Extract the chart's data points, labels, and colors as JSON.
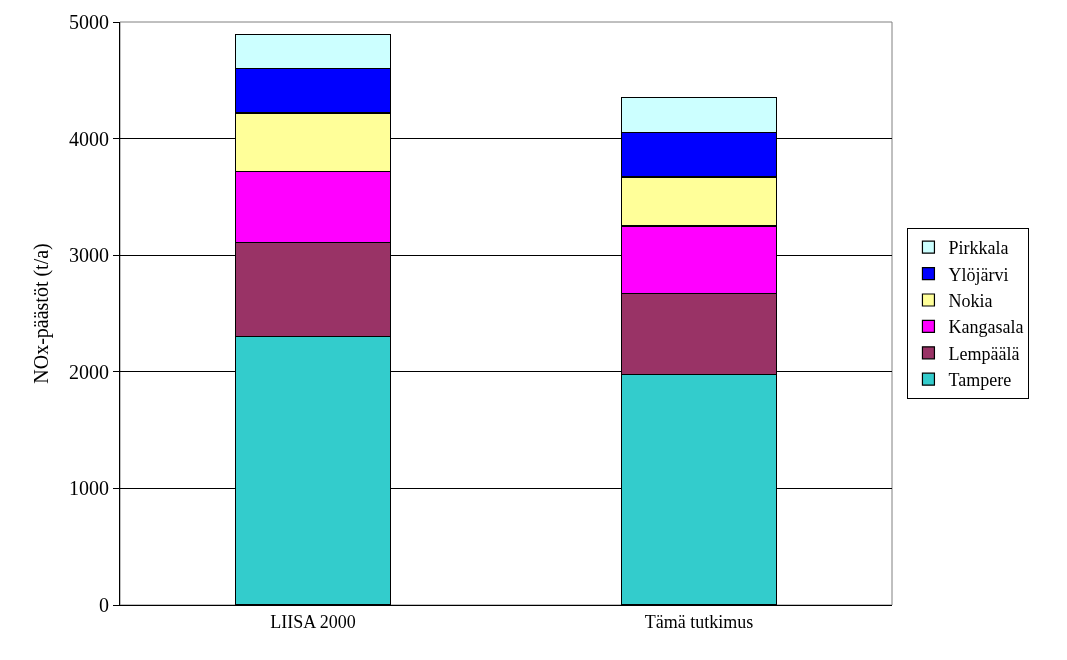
{
  "chart_data": {
    "type": "bar",
    "stacked": true,
    "ylabel": "NOx-päästöt (t/a)",
    "categories": [
      "LIISA 2000",
      "Tämä tutkimus"
    ],
    "series": [
      {
        "name": "Tampere",
        "color": "#33cccc",
        "values": [
          2300,
          1980
        ]
      },
      {
        "name": "Lempäälä",
        "color": "#993366",
        "values": [
          810,
          690
        ]
      },
      {
        "name": "Kangasala",
        "color": "#ff00ff",
        "values": [
          610,
          580
        ]
      },
      {
        "name": "Nokia",
        "color": "#ffff99",
        "values": [
          500,
          420
        ]
      },
      {
        "name": "Ylöjärvi",
        "color": "#0000ff",
        "values": [
          380,
          380
        ]
      },
      {
        "name": "Pirkkala",
        "color": "#ccffff",
        "values": [
          290,
          300
        ]
      }
    ],
    "ylim": [
      0,
      5000
    ],
    "yticks": [
      0,
      1000,
      2000,
      3000,
      4000,
      5000
    ],
    "grid": "y",
    "legend": "right"
  }
}
